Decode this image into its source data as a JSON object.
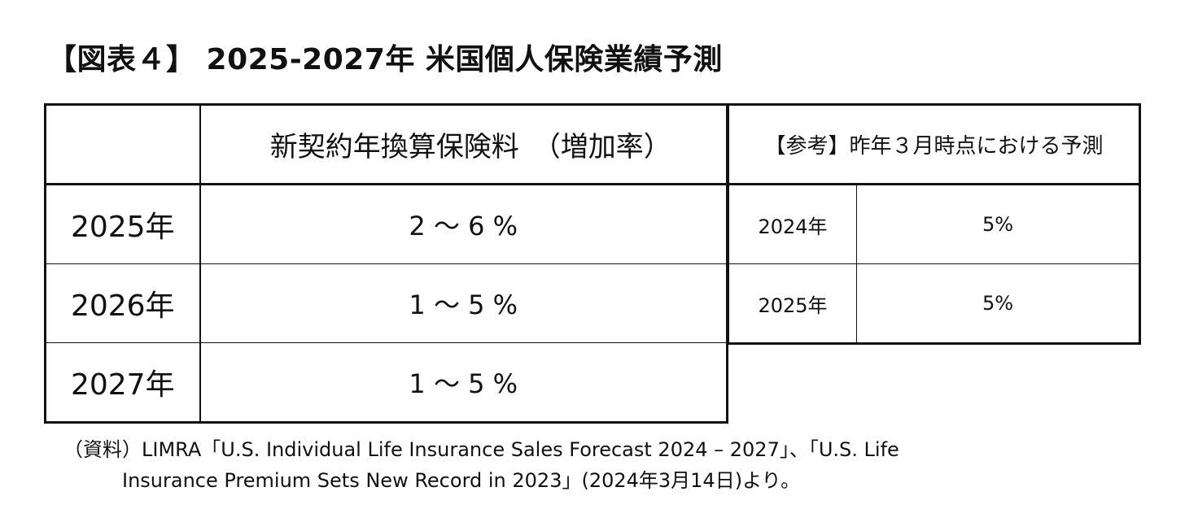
{
  "title": "【図表４】 2025-2027年  米国個人保険業績予測",
  "main_table": {
    "header": "新契約年換算保険料　（増加率）",
    "rows": [
      {
        "year": "2025年",
        "value": "2 ～ 6 %"
      },
      {
        "year": "2026年",
        "value": "1 ～ 5 %"
      },
      {
        "year": "2027年",
        "value": "1 ～ 5 %"
      }
    ]
  },
  "ref_table": {
    "header": "【参考】昨年３月時点における予測",
    "rows": [
      {
        "year": "2024年",
        "value": "5%"
      },
      {
        "year": "2025年",
        "value": "5%"
      }
    ]
  },
  "source": {
    "line1": "（資料）LIMRA「U.S. Individual Life Insurance Sales Forecast 2024 – 2027」、「U.S. Life",
    "line2": "Insurance Premium Sets New Record in 2023」(2024年3月14日)より。"
  }
}
